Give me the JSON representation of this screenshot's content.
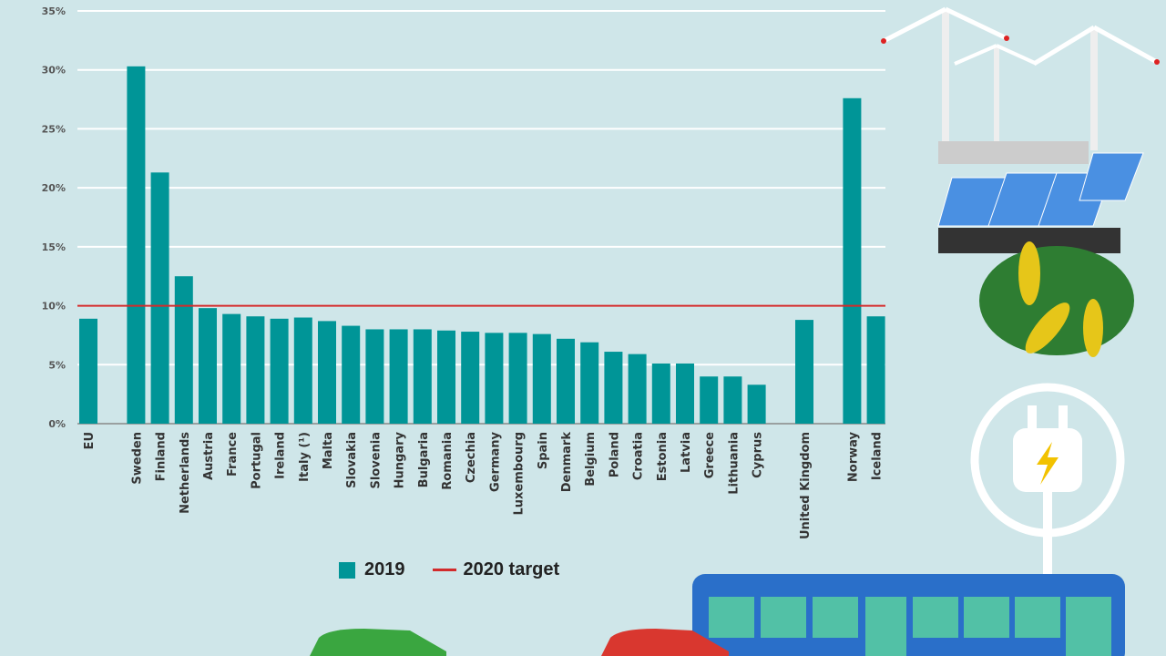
{
  "chart_data": {
    "type": "bar",
    "categories": [
      "EU",
      "Sweden",
      "Finland",
      "Netherlands",
      "Austria",
      "France",
      "Portugal",
      "Ireland",
      "Italy (¹)",
      "Malta",
      "Slovakia",
      "Slovenia",
      "Hungary",
      "Bulgaria",
      "Romania",
      "Czechia",
      "Germany",
      "Luxembourg",
      "Spain",
      "Denmark",
      "Belgium",
      "Poland",
      "Croatia",
      "Estonia",
      "Latvia",
      "Greece",
      "Lithuania",
      "Cyprus",
      "United Kingdom",
      "Norway",
      "Iceland"
    ],
    "series": [
      {
        "name": "2019",
        "values": [
          8.9,
          30.3,
          21.3,
          12.5,
          9.8,
          9.3,
          9.1,
          8.9,
          9.0,
          8.7,
          8.3,
          8.0,
          8.0,
          8.0,
          7.9,
          7.8,
          7.7,
          7.7,
          7.6,
          7.2,
          6.9,
          6.1,
          5.9,
          5.1,
          5.1,
          4.0,
          4.0,
          3.3,
          8.8,
          27.6,
          9.1
        ]
      }
    ],
    "target": {
      "name": "2020 target",
      "value": 10
    },
    "yticks": [
      "0%",
      "5%",
      "10%",
      "15%",
      "20%",
      "25%",
      "30%",
      "35%"
    ],
    "ylim": [
      0,
      35
    ],
    "grid": true,
    "legend_position": "bottom",
    "colors": {
      "bar": "#009597",
      "target": "#d22b2b",
      "background": "#cfe6e9"
    }
  },
  "legend": {
    "series": "2019",
    "target": "2020 target"
  }
}
